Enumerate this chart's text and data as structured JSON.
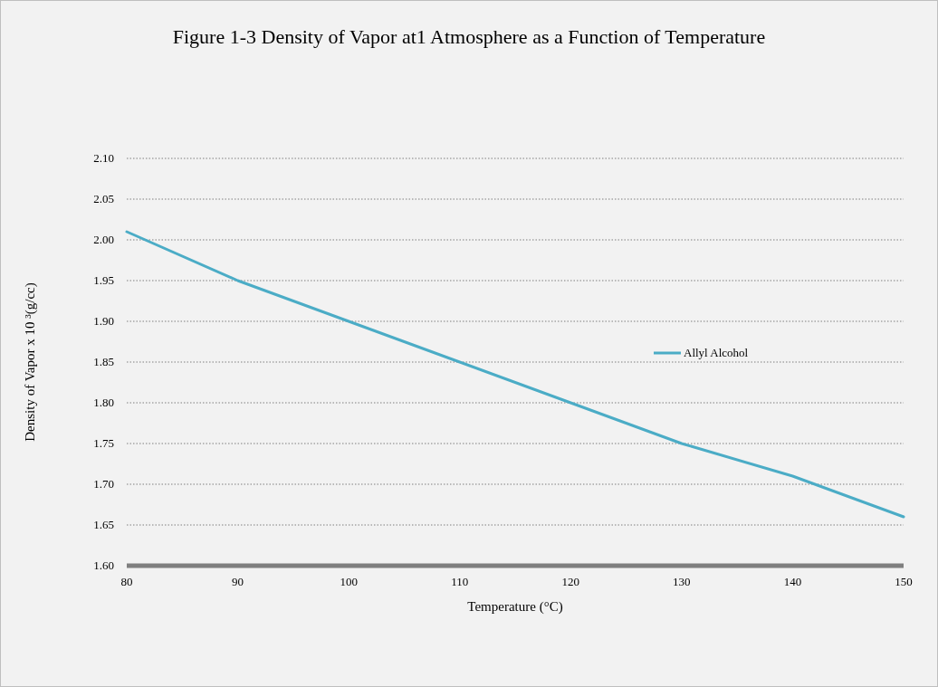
{
  "chart_data": {
    "type": "line",
    "title": "Figure 1-3 Density of Vapor at1 Atmosphere as a Function of Temperature",
    "xlabel": "Temperature (°C)",
    "ylabel": "Density of Vapor x 10 ³(g/cc)",
    "x": [
      80,
      90,
      100,
      110,
      120,
      130,
      140,
      150
    ],
    "series": [
      {
        "name": "Allyl Alcohol",
        "color": "#4bacc6",
        "values": [
          2.01,
          1.95,
          1.9,
          1.85,
          1.8,
          1.75,
          1.71,
          1.66
        ]
      }
    ],
    "xlim": [
      80,
      150
    ],
    "xticks": [
      80,
      90,
      100,
      110,
      120,
      130,
      140,
      150
    ],
    "ylim": [
      1.6,
      2.1
    ],
    "yticks": [
      {
        "value": 1.6,
        "label": "1.60"
      },
      {
        "value": 1.65,
        "label": "1.65"
      },
      {
        "value": 1.7,
        "label": "1.70"
      },
      {
        "value": 1.75,
        "label": "1.75"
      },
      {
        "value": 1.8,
        "label": "1.80"
      },
      {
        "value": 1.85,
        "label": "1.85"
      },
      {
        "value": 1.9,
        "label": "1.90"
      },
      {
        "value": 1.95,
        "label": "1.95"
      },
      {
        "value": 2.0,
        "label": "2.00"
      },
      {
        "value": 2.05,
        "label": "2.05"
      },
      {
        "value": 2.1,
        "label": "2.10"
      }
    ],
    "grid": "y",
    "legend": "right",
    "marker": "none",
    "line_style": "solid"
  }
}
